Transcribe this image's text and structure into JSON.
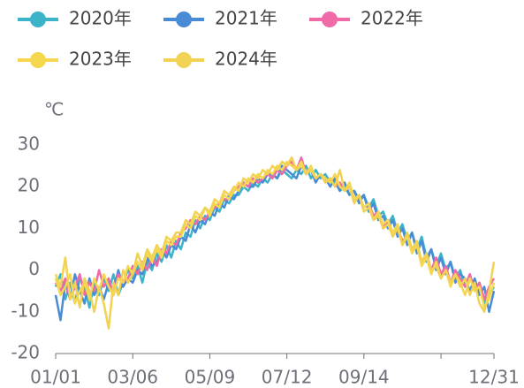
{
  "chart_data": {
    "type": "line",
    "y_label": "℃",
    "categories": [
      "01/01",
      null,
      null,
      null,
      null,
      null,
      null,
      null,
      null,
      null,
      null,
      null,
      null,
      null,
      null,
      null,
      "03/06",
      null,
      null,
      null,
      null,
      null,
      null,
      null,
      null,
      null,
      null,
      null,
      null,
      null,
      null,
      null,
      "05/09",
      null,
      null,
      null,
      null,
      null,
      null,
      null,
      null,
      null,
      null,
      null,
      null,
      null,
      null,
      null,
      "07/12",
      null,
      null,
      null,
      null,
      null,
      null,
      null,
      null,
      null,
      null,
      null,
      null,
      null,
      null,
      null,
      "09/14",
      null,
      null,
      null,
      null,
      null,
      null,
      null,
      null,
      null,
      null,
      null,
      null,
      null,
      null,
      null,
      null,
      null,
      null,
      null,
      null,
      null,
      null,
      null,
      null,
      null,
      null,
      "12/31"
    ],
    "ylim": [
      -20,
      30
    ],
    "yticks": [
      -20,
      -10,
      0,
      10,
      20,
      30
    ],
    "grid": false,
    "series": [
      {
        "name": "2020年",
        "color": "#3bb4c9",
        "values": [
          -4,
          -1,
          -7,
          -3,
          -8,
          -2,
          -4,
          -9,
          -3,
          -6,
          -2,
          -5,
          -1,
          -6,
          -3,
          0,
          -2,
          1,
          -3,
          2,
          0,
          4,
          2,
          6,
          3,
          7,
          5,
          9,
          8,
          12,
          10,
          13,
          12,
          15,
          14,
          17,
          16,
          18,
          18,
          20,
          19,
          21,
          20,
          22,
          21,
          23,
          22,
          24,
          23,
          22,
          24,
          23,
          25,
          22,
          24,
          22,
          23,
          21,
          21,
          19,
          20,
          18,
          19,
          17,
          18,
          15,
          17,
          13,
          14,
          11,
          13,
          9,
          11,
          7,
          9,
          5,
          8,
          3,
          5,
          1,
          4,
          0,
          2,
          -2,
          0,
          -4,
          -1,
          -5,
          -3,
          -8,
          -6,
          -4
        ]
      },
      {
        "name": "2021年",
        "color": "#4a8bd6",
        "values": [
          -6,
          -12,
          -3,
          -7,
          -1,
          -5,
          -8,
          -2,
          -6,
          -4,
          -7,
          -3,
          -5,
          0,
          -4,
          -2,
          -3,
          0,
          -1,
          3,
          1,
          2,
          5,
          3,
          6,
          5,
          8,
          7,
          11,
          9,
          12,
          11,
          14,
          13,
          16,
          15,
          18,
          17,
          19,
          21,
          20,
          20,
          22,
          21,
          23,
          23,
          22,
          25,
          24,
          23,
          22,
          25,
          23,
          24,
          21,
          23,
          22,
          20,
          22,
          19,
          21,
          18,
          19,
          16,
          18,
          14,
          16,
          12,
          13,
          10,
          12,
          8,
          10,
          6,
          9,
          4,
          7,
          2,
          5,
          0,
          3,
          -1,
          2,
          -3,
          -1,
          -2,
          -5,
          -2,
          -6,
          -4,
          -10,
          -5
        ]
      },
      {
        "name": "2022年",
        "color": "#f06aa8",
        "values": [
          -3,
          -5,
          -2,
          -7,
          -4,
          -1,
          -6,
          -3,
          -5,
          0,
          -4,
          -2,
          -6,
          -1,
          -3,
          -2,
          1,
          -1,
          2,
          0,
          3,
          1,
          5,
          4,
          7,
          6,
          9,
          10,
          12,
          11,
          13,
          12,
          14,
          15,
          16,
          17,
          17,
          19,
          20,
          21,
          20,
          22,
          21,
          22,
          23,
          22,
          24,
          23,
          25,
          26,
          24,
          27,
          23,
          24,
          22,
          23,
          21,
          22,
          20,
          21,
          19,
          20,
          17,
          18,
          15,
          16,
          13,
          14,
          10,
          12,
          9,
          10,
          7,
          8,
          5,
          6,
          2,
          4,
          0,
          3,
          -1,
          1,
          -3,
          0,
          -2,
          -4,
          -1,
          -5,
          -3,
          -7,
          -4,
          -2
        ]
      },
      {
        "name": "2023年",
        "color": "#f5d84f",
        "values": [
          -2,
          -6,
          -4,
          -1,
          -8,
          -5,
          -3,
          -7,
          -2,
          -5,
          -1,
          -4,
          -6,
          -2,
          -3,
          1,
          -1,
          2,
          0,
          4,
          2,
          5,
          3,
          7,
          6,
          8,
          8,
          11,
          10,
          13,
          12,
          15,
          13,
          16,
          15,
          18,
          17,
          19,
          21,
          20,
          22,
          21,
          23,
          22,
          24,
          23,
          25,
          24,
          26,
          25,
          24,
          26,
          23,
          25,
          22,
          23,
          22,
          21,
          23,
          20,
          19,
          21,
          17,
          18,
          15,
          16,
          12,
          14,
          11,
          12,
          9,
          11,
          6,
          8,
          4,
          6,
          1,
          3,
          -1,
          2,
          -2,
          0,
          -4,
          -1,
          -3,
          -6,
          -2,
          -5,
          -4,
          -9,
          -7,
          -3
        ]
      },
      {
        "name": "2024年",
        "color": "#f2d252",
        "values": [
          -1,
          -4,
          3,
          -7,
          -3,
          -9,
          -2,
          -5,
          -10,
          -4,
          -8,
          -14,
          -3,
          -6,
          0,
          -3,
          -1,
          4,
          1,
          5,
          3,
          6,
          4,
          8,
          7,
          9,
          9,
          12,
          11,
          14,
          13,
          15,
          14,
          17,
          16,
          19,
          18,
          20,
          19,
          22,
          21,
          23,
          22,
          24,
          23,
          25,
          24,
          26,
          25,
          27,
          24,
          25,
          23,
          24,
          22,
          23,
          21,
          22,
          20,
          24,
          19,
          20,
          16,
          18,
          14,
          15,
          12,
          13,
          10,
          11,
          8,
          10,
          6,
          9,
          5,
          7,
          2,
          4,
          0,
          1,
          -2,
          0,
          -3,
          -1,
          -4,
          -2,
          -6,
          -3,
          -8,
          -10,
          -5,
          2
        ]
      }
    ]
  }
}
